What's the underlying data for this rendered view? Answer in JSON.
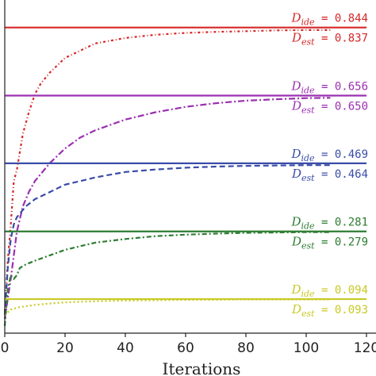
{
  "chart_data": {
    "type": "line",
    "xlabel": "Iterations",
    "ylabel": "",
    "xlim": [
      0,
      120
    ],
    "ylim": [
      0.0,
      0.92
    ],
    "xticks": [
      0,
      20,
      40,
      60,
      80,
      100,
      120
    ],
    "xtick_labels": [
      "0",
      "20",
      "40",
      "60",
      "80",
      "100",
      "120"
    ],
    "grid": false,
    "series": [
      {
        "id": "s084",
        "color": "#d62728",
        "ideal": 0.844,
        "estimate": 0.837,
        "ideal_label": "D_ide = 0.844",
        "est_label": "D_est = 0.837",
        "dash": "3,3,1,3",
        "points": [
          [
            0,
            0.06
          ],
          [
            1,
            0.2
          ],
          [
            2,
            0.3
          ],
          [
            3,
            0.42
          ],
          [
            4,
            0.45
          ],
          [
            5,
            0.5
          ],
          [
            6,
            0.55
          ],
          [
            7,
            0.58
          ],
          [
            8,
            0.61
          ],
          [
            10,
            0.66
          ],
          [
            12,
            0.69
          ],
          [
            15,
            0.72
          ],
          [
            20,
            0.76
          ],
          [
            25,
            0.78
          ],
          [
            30,
            0.8
          ],
          [
            40,
            0.815
          ],
          [
            50,
            0.824
          ],
          [
            60,
            0.829
          ],
          [
            70,
            0.832
          ],
          [
            80,
            0.834
          ],
          [
            90,
            0.836
          ],
          [
            100,
            0.837
          ],
          [
            108,
            0.837
          ]
        ]
      },
      {
        "id": "s065",
        "color": "#9b30b0",
        "ideal": 0.656,
        "estimate": 0.65,
        "ideal_label": "D_ide = 0.656",
        "est_label": "D_est = 0.650",
        "dash": "8,3,2,3",
        "points": [
          [
            0,
            0.04
          ],
          [
            2,
            0.15
          ],
          [
            4,
            0.28
          ],
          [
            6,
            0.35
          ],
          [
            8,
            0.39
          ],
          [
            10,
            0.42
          ],
          [
            12,
            0.44
          ],
          [
            15,
            0.47
          ],
          [
            20,
            0.51
          ],
          [
            25,
            0.54
          ],
          [
            30,
            0.56
          ],
          [
            40,
            0.59
          ],
          [
            50,
            0.61
          ],
          [
            60,
            0.625
          ],
          [
            70,
            0.635
          ],
          [
            80,
            0.642
          ],
          [
            90,
            0.646
          ],
          [
            100,
            0.649
          ],
          [
            108,
            0.65
          ]
        ]
      },
      {
        "id": "s047",
        "color": "#3a4ca8",
        "ideal": 0.469,
        "estimate": 0.464,
        "ideal_label": "D_ide = 0.469",
        "est_label": "D_est = 0.464",
        "dash": "7,4",
        "points": [
          [
            0,
            0.05
          ],
          [
            1,
            0.18
          ],
          [
            2,
            0.26
          ],
          [
            3,
            0.3
          ],
          [
            4,
            0.32
          ],
          [
            5,
            0.33
          ],
          [
            7,
            0.35
          ],
          [
            10,
            0.37
          ],
          [
            15,
            0.39
          ],
          [
            20,
            0.41
          ],
          [
            25,
            0.42
          ],
          [
            30,
            0.43
          ],
          [
            40,
            0.445
          ],
          [
            50,
            0.452
          ],
          [
            60,
            0.457
          ],
          [
            70,
            0.46
          ],
          [
            80,
            0.462
          ],
          [
            90,
            0.463
          ],
          [
            100,
            0.464
          ],
          [
            108,
            0.464
          ]
        ]
      },
      {
        "id": "s028",
        "color": "#2e7d32",
        "ideal": 0.281,
        "estimate": 0.279,
        "ideal_label": "D_ide = 0.281",
        "est_label": "D_est = 0.279",
        "dash": "6,3,2,3",
        "points": [
          [
            0,
            0.02
          ],
          [
            1,
            0.12
          ],
          [
            2,
            0.16
          ],
          [
            3,
            0.15
          ],
          [
            4,
            0.16
          ],
          [
            5,
            0.18
          ],
          [
            7,
            0.19
          ],
          [
            10,
            0.2
          ],
          [
            15,
            0.215
          ],
          [
            20,
            0.23
          ],
          [
            25,
            0.24
          ],
          [
            30,
            0.25
          ],
          [
            40,
            0.26
          ],
          [
            50,
            0.268
          ],
          [
            60,
            0.272
          ],
          [
            70,
            0.275
          ],
          [
            80,
            0.277
          ],
          [
            90,
            0.278
          ],
          [
            100,
            0.279
          ],
          [
            108,
            0.279
          ]
        ]
      },
      {
        "id": "s009",
        "color": "#c9c925",
        "ideal": 0.094,
        "estimate": 0.093,
        "ideal_label": "D_ide = 0.094",
        "est_label": "D_est = 0.093",
        "dash": "2,3",
        "points": [
          [
            0,
            0.05
          ],
          [
            2,
            0.065
          ],
          [
            5,
            0.072
          ],
          [
            10,
            0.078
          ],
          [
            15,
            0.082
          ],
          [
            20,
            0.085
          ],
          [
            30,
            0.088
          ],
          [
            40,
            0.09
          ],
          [
            50,
            0.091
          ],
          [
            60,
            0.092
          ],
          [
            70,
            0.0925
          ],
          [
            80,
            0.093
          ],
          [
            100,
            0.093
          ],
          [
            108,
            0.093
          ]
        ]
      }
    ]
  }
}
